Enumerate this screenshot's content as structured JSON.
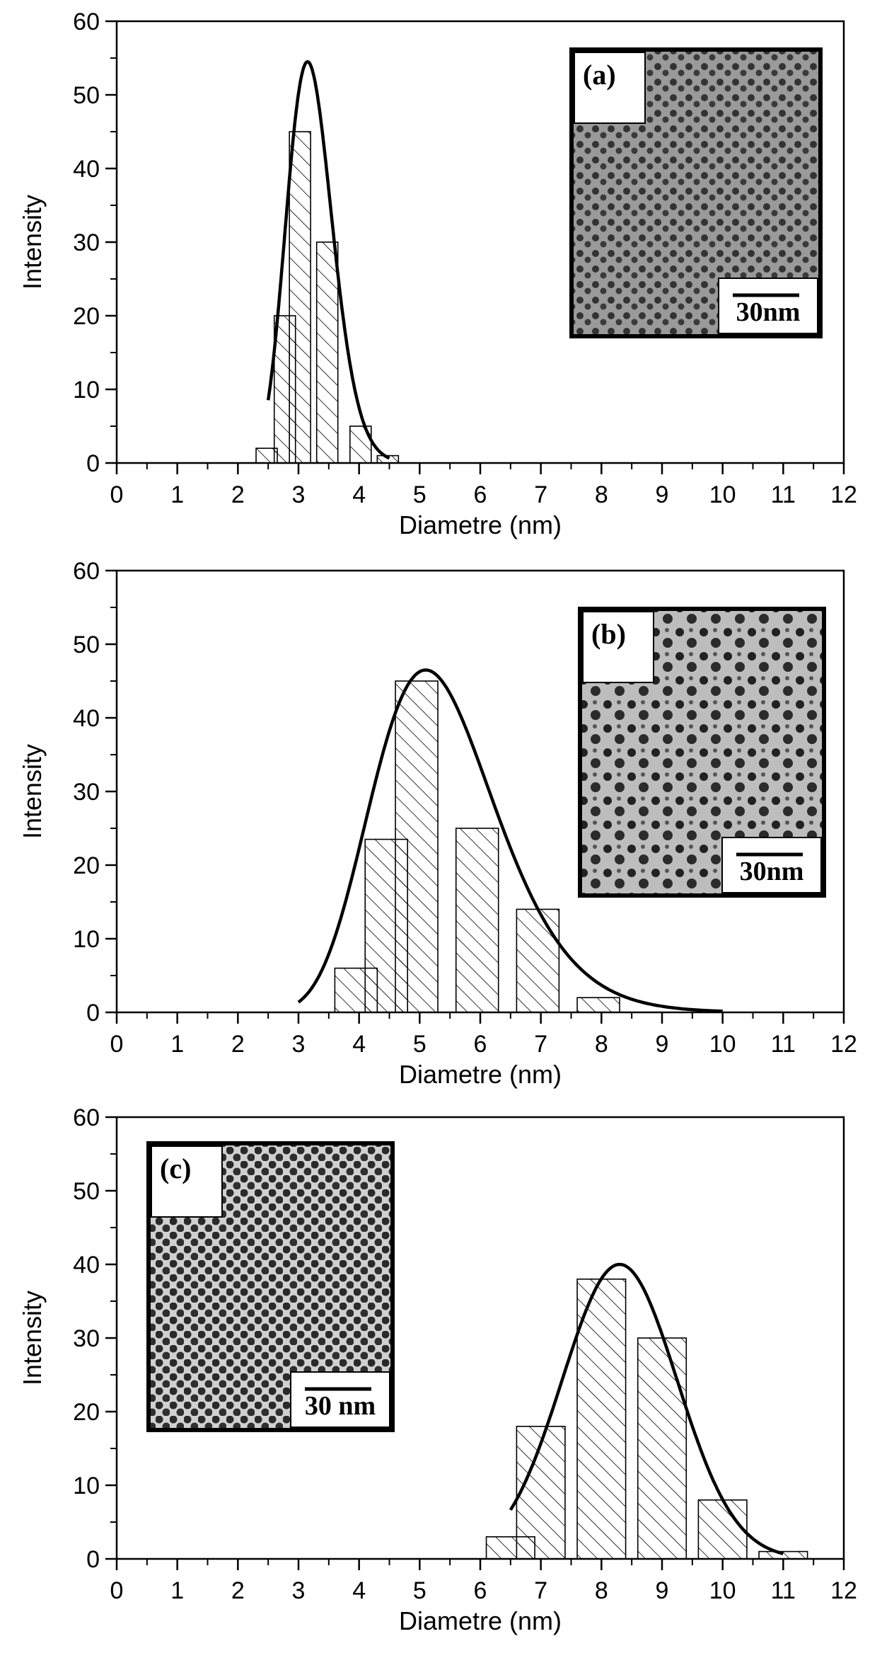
{
  "colors": {
    "ink": "#000000",
    "paper": "#ffffff",
    "inset_bg": "#8c8c8c",
    "particle": "#303030"
  },
  "chart_data": [
    {
      "type": "bar",
      "xlabel": "Diametre (nm)",
      "ylabel": "Intensity",
      "xlim": [
        0,
        12
      ],
      "ylim": [
        0,
        60
      ],
      "xticks": [
        "0",
        "1",
        "2",
        "3",
        "4",
        "5",
        "6",
        "7",
        "8",
        "9",
        "10",
        "11",
        "12"
      ],
      "yticks": [
        "0",
        "10",
        "20",
        "30",
        "40",
        "50",
        "60"
      ],
      "bars": [
        {
          "x0": 2.3,
          "x1": 2.65,
          "value": 2
        },
        {
          "x0": 2.6,
          "x1": 2.95,
          "value": 20
        },
        {
          "x0": 2.85,
          "x1": 3.2,
          "value": 45
        },
        {
          "x0": 3.3,
          "x1": 3.65,
          "value": 30
        },
        {
          "x0": 3.85,
          "x1": 4.2,
          "value": 5
        },
        {
          "x0": 4.3,
          "x1": 4.65,
          "value": 1
        }
      ],
      "fit": {
        "type": "lognormal",
        "x0": 3.15,
        "sigma": 0.12,
        "peak": 54.5,
        "xmin": 2.5,
        "xmax": 4.5
      },
      "inset": {
        "label": "(a)",
        "scale_bar": "30nm",
        "position": "top-right"
      }
    },
    {
      "type": "bar",
      "xlabel": "Diametre (nm)",
      "ylabel": "Intensity",
      "xlim": [
        0,
        12
      ],
      "ylim": [
        0,
        60
      ],
      "xticks": [
        "0",
        "1",
        "2",
        "3",
        "4",
        "5",
        "6",
        "7",
        "8",
        "9",
        "10",
        "11",
        "12"
      ],
      "yticks": [
        "0",
        "10",
        "20",
        "30",
        "40",
        "50",
        "60"
      ],
      "bars": [
        {
          "x0": 3.6,
          "x1": 4.3,
          "value": 6
        },
        {
          "x0": 4.1,
          "x1": 4.8,
          "value": 23.5
        },
        {
          "x0": 4.6,
          "x1": 5.3,
          "value": 45
        },
        {
          "x0": 5.6,
          "x1": 6.3,
          "value": 25
        },
        {
          "x0": 6.6,
          "x1": 7.3,
          "value": 14
        },
        {
          "x0": 7.6,
          "x1": 8.3,
          "value": 2
        }
      ],
      "fit": {
        "type": "lognormal",
        "x0": 5.1,
        "sigma": 0.2,
        "peak": 46.5,
        "xmin": 3.0,
        "xmax": 10.0
      },
      "inset": {
        "label": "(b)",
        "scale_bar": "30nm",
        "position": "top-right"
      }
    },
    {
      "type": "bar",
      "xlabel": "Diametre (nm)",
      "ylabel": "Intensity",
      "xlim": [
        0,
        12
      ],
      "ylim": [
        0,
        60
      ],
      "xticks": [
        "0",
        "1",
        "2",
        "3",
        "4",
        "5",
        "6",
        "7",
        "8",
        "9",
        "10",
        "11",
        "12"
      ],
      "yticks": [
        "0",
        "10",
        "20",
        "30",
        "40",
        "50",
        "60"
      ],
      "bars": [
        {
          "x0": 6.1,
          "x1": 6.9,
          "value": 3
        },
        {
          "x0": 6.6,
          "x1": 7.4,
          "value": 18
        },
        {
          "x0": 7.6,
          "x1": 8.4,
          "value": 38
        },
        {
          "x0": 8.6,
          "x1": 9.4,
          "value": 30
        },
        {
          "x0": 9.6,
          "x1": 10.4,
          "value": 8
        },
        {
          "x0": 10.6,
          "x1": 11.4,
          "value": 1
        }
      ],
      "fit": {
        "type": "gaussian",
        "x0": 8.3,
        "sigma": 0.95,
        "peak": 40,
        "xmin": 6.5,
        "xmax": 11.0
      },
      "inset": {
        "label": "(c)",
        "scale_bar": "30 nm",
        "position": "top-left"
      }
    }
  ]
}
